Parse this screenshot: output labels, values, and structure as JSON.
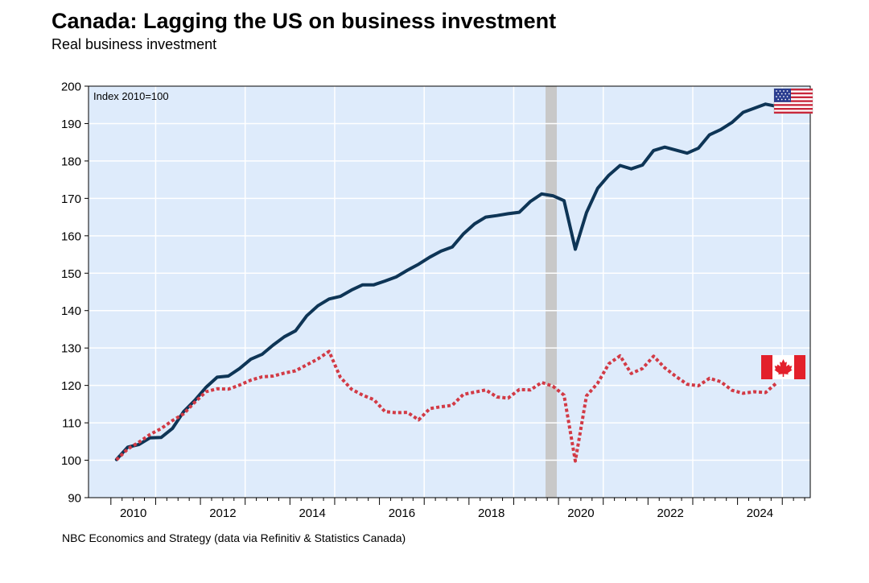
{
  "header": {
    "title": "Canada: Lagging the US on business investment",
    "subtitle": "Real business investment"
  },
  "footer": {
    "source": "NBC Economics and Strategy (data via Refinitiv & Statistics Canada)"
  },
  "chart_data": {
    "type": "line",
    "title": "Canada: Lagging the US on business investment",
    "subtitle": "Real business investment",
    "ylabel": "Index 2010=100",
    "xlabel": "",
    "xlim": [
      2009.5,
      2025.625
    ],
    "ylim": [
      90,
      200
    ],
    "yticks": [
      90,
      100,
      110,
      120,
      130,
      140,
      150,
      160,
      170,
      180,
      190,
      200
    ],
    "xtick_labels": [
      "2010",
      "2012",
      "2014",
      "2016",
      "2018",
      "2020",
      "2022",
      "2024"
    ],
    "grid": true,
    "background_color": "#deebfb",
    "shaded_period": {
      "start": "2020-Q1",
      "end": "2020-Q2",
      "color": "#c8c8c8"
    },
    "legend": "flag icons at line ends (US upper right, Canada right)",
    "x": [
      "2010-Q1",
      "2010-Q2",
      "2010-Q3",
      "2010-Q4",
      "2011-Q1",
      "2011-Q2",
      "2011-Q3",
      "2011-Q4",
      "2012-Q1",
      "2012-Q2",
      "2012-Q3",
      "2012-Q4",
      "2013-Q1",
      "2013-Q2",
      "2013-Q3",
      "2013-Q4",
      "2014-Q1",
      "2014-Q2",
      "2014-Q3",
      "2014-Q4",
      "2015-Q1",
      "2015-Q2",
      "2015-Q3",
      "2015-Q4",
      "2016-Q1",
      "2016-Q2",
      "2016-Q3",
      "2016-Q4",
      "2017-Q1",
      "2017-Q2",
      "2017-Q3",
      "2017-Q4",
      "2018-Q1",
      "2018-Q2",
      "2018-Q3",
      "2018-Q4",
      "2019-Q1",
      "2019-Q2",
      "2019-Q3",
      "2019-Q4",
      "2020-Q1",
      "2020-Q2",
      "2020-Q3",
      "2020-Q4",
      "2021-Q1",
      "2021-Q2",
      "2021-Q3",
      "2021-Q4",
      "2022-Q1",
      "2022-Q2",
      "2022-Q3",
      "2022-Q4",
      "2023-Q1",
      "2023-Q2",
      "2023-Q3",
      "2023-Q4",
      "2024-Q1",
      "2024-Q2",
      "2024-Q3",
      "2024-Q4"
    ],
    "series": [
      {
        "color": "#0e3556",
        "style": "solid",
        "flag": "us-flag-icon",
        "values": [
          100.2,
          103.5,
          104.2,
          106.0,
          106.1,
          108.5,
          113.0,
          116.0,
          119.5,
          122.2,
          122.5,
          124.5,
          127.0,
          128.3,
          130.8,
          133.0,
          134.6,
          138.6,
          141.3,
          143.1,
          143.8,
          145.5,
          146.9,
          146.9,
          147.9,
          149.0,
          150.8,
          152.4,
          154.3,
          155.9,
          157.0,
          160.5,
          163.2,
          165.0,
          165.4,
          165.9,
          166.3,
          169.2,
          171.2,
          170.7,
          169.4,
          156.4,
          166.2,
          172.7,
          176.2,
          178.8,
          177.9,
          178.9,
          182.8,
          183.7,
          182.9,
          182.1,
          183.4,
          187.0,
          188.4,
          190.3,
          193.0,
          194.1,
          195.2,
          194.6
        ]
      },
      {
        "color": "#d23a45",
        "style": "dotted",
        "flag": "canada-flag-icon",
        "values": [
          100.1,
          103.0,
          104.8,
          106.9,
          108.5,
          110.6,
          112.4,
          115.5,
          118.3,
          119.1,
          119.0,
          120.1,
          121.4,
          122.3,
          122.5,
          123.3,
          123.9,
          125.5,
          127.1,
          129.1,
          122.2,
          119.0,
          117.4,
          116.2,
          113.0,
          112.7,
          112.8,
          110.8,
          113.8,
          114.3,
          114.7,
          117.6,
          118.2,
          118.8,
          116.9,
          116.6,
          118.9,
          118.8,
          120.8,
          119.8,
          117.4,
          99.8,
          117.2,
          120.6,
          125.8,
          127.9,
          123.2,
          124.5,
          127.8,
          124.7,
          122.4,
          120.3,
          119.9,
          121.9,
          121.0,
          118.7,
          117.9,
          118.3,
          118.1,
          120.7
        ]
      }
    ]
  }
}
